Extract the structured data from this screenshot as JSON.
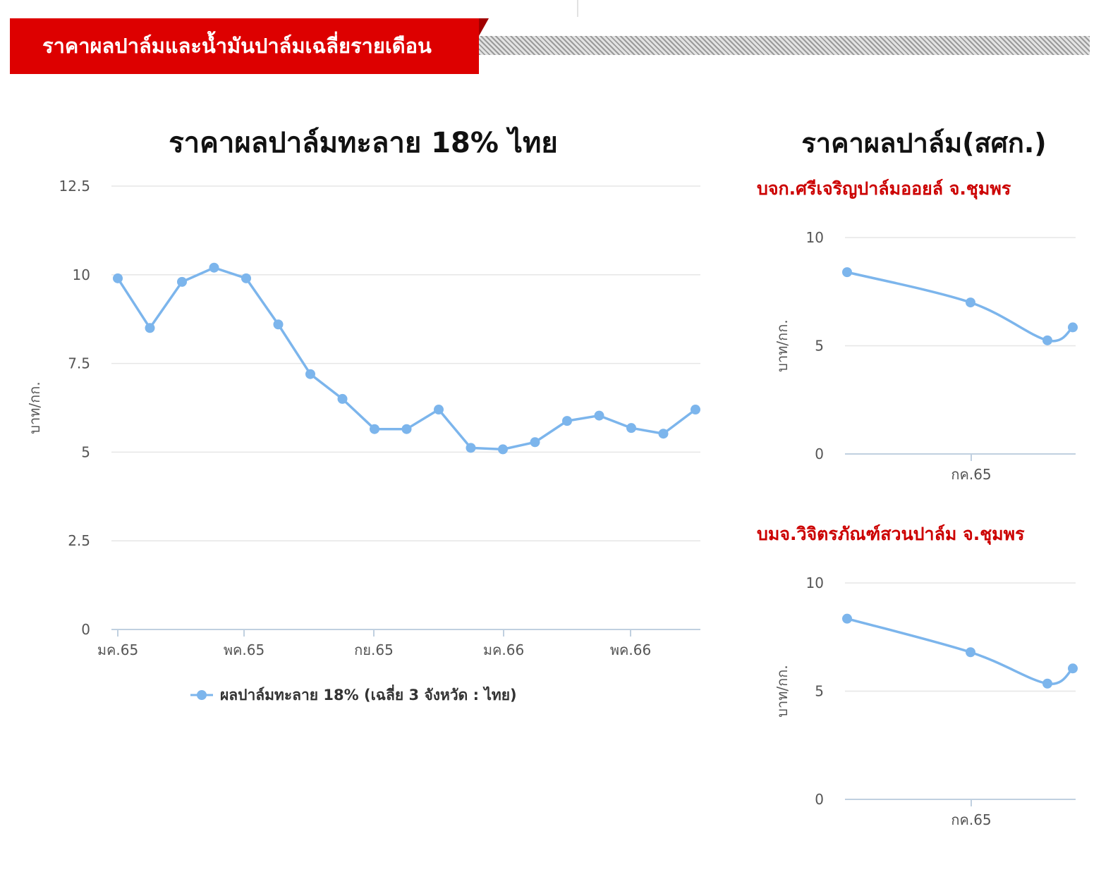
{
  "header": {
    "title": "ราคาผลปาล์มและน้ำมันปาล์มเฉลี่ยรายเดือน"
  },
  "colors": {
    "banner": "#dd0000",
    "series": "#7cb5ec",
    "subtitle": "#cc0000"
  },
  "chart_data": [
    {
      "type": "line",
      "title": "ราคาผลปาล์มทะลาย 18% ไทย",
      "ylabel": "บาท/กก.",
      "xlabel": "",
      "ylim": [
        0,
        12.5
      ],
      "yticks": [
        "0",
        "2.5",
        "5",
        "7.5",
        "10",
        "12.5"
      ],
      "xticks": [
        "มค.65",
        "พค.65",
        "กย.65",
        "มค.66",
        "พค.66"
      ],
      "grid": true,
      "legend_position": "bottom",
      "series": [
        {
          "name": "ผลปาล์มทะลาย 18% (เฉลี่ย 3 จังหวัด : ไทย)",
          "values": [
            9.9,
            8.5,
            9.8,
            10.2,
            9.9,
            8.6,
            7.2,
            6.5,
            5.65,
            5.65,
            6.2,
            5.12,
            5.08,
            5.28,
            5.88,
            6.03,
            5.68,
            5.52,
            6.2
          ]
        }
      ]
    },
    {
      "type": "line",
      "title": "ราคาผลปาล์ม(สศก.)",
      "subtitle": "บจก.ศรีเจริญปาล์มออยล์ จ.ชุมพร",
      "ylabel": "บาท/กก.",
      "ylim": [
        0,
        10
      ],
      "yticks": [
        "0",
        "5",
        "10"
      ],
      "xticks": [
        "กค.65"
      ],
      "grid": true,
      "series": [
        {
          "values": [
            8.4,
            7.0,
            5.25,
            5.85
          ]
        }
      ]
    },
    {
      "type": "line",
      "subtitle": "บมจ.วิจิตรภัณฑ์สวนปาล์ม จ.ชุมพร",
      "ylabel": "บาท/กก.",
      "ylim": [
        0,
        10
      ],
      "yticks": [
        "0",
        "5",
        "10"
      ],
      "xticks": [
        "กค.65"
      ],
      "grid": true,
      "series": [
        {
          "values": [
            8.35,
            6.8,
            5.35,
            6.05
          ]
        }
      ]
    }
  ]
}
